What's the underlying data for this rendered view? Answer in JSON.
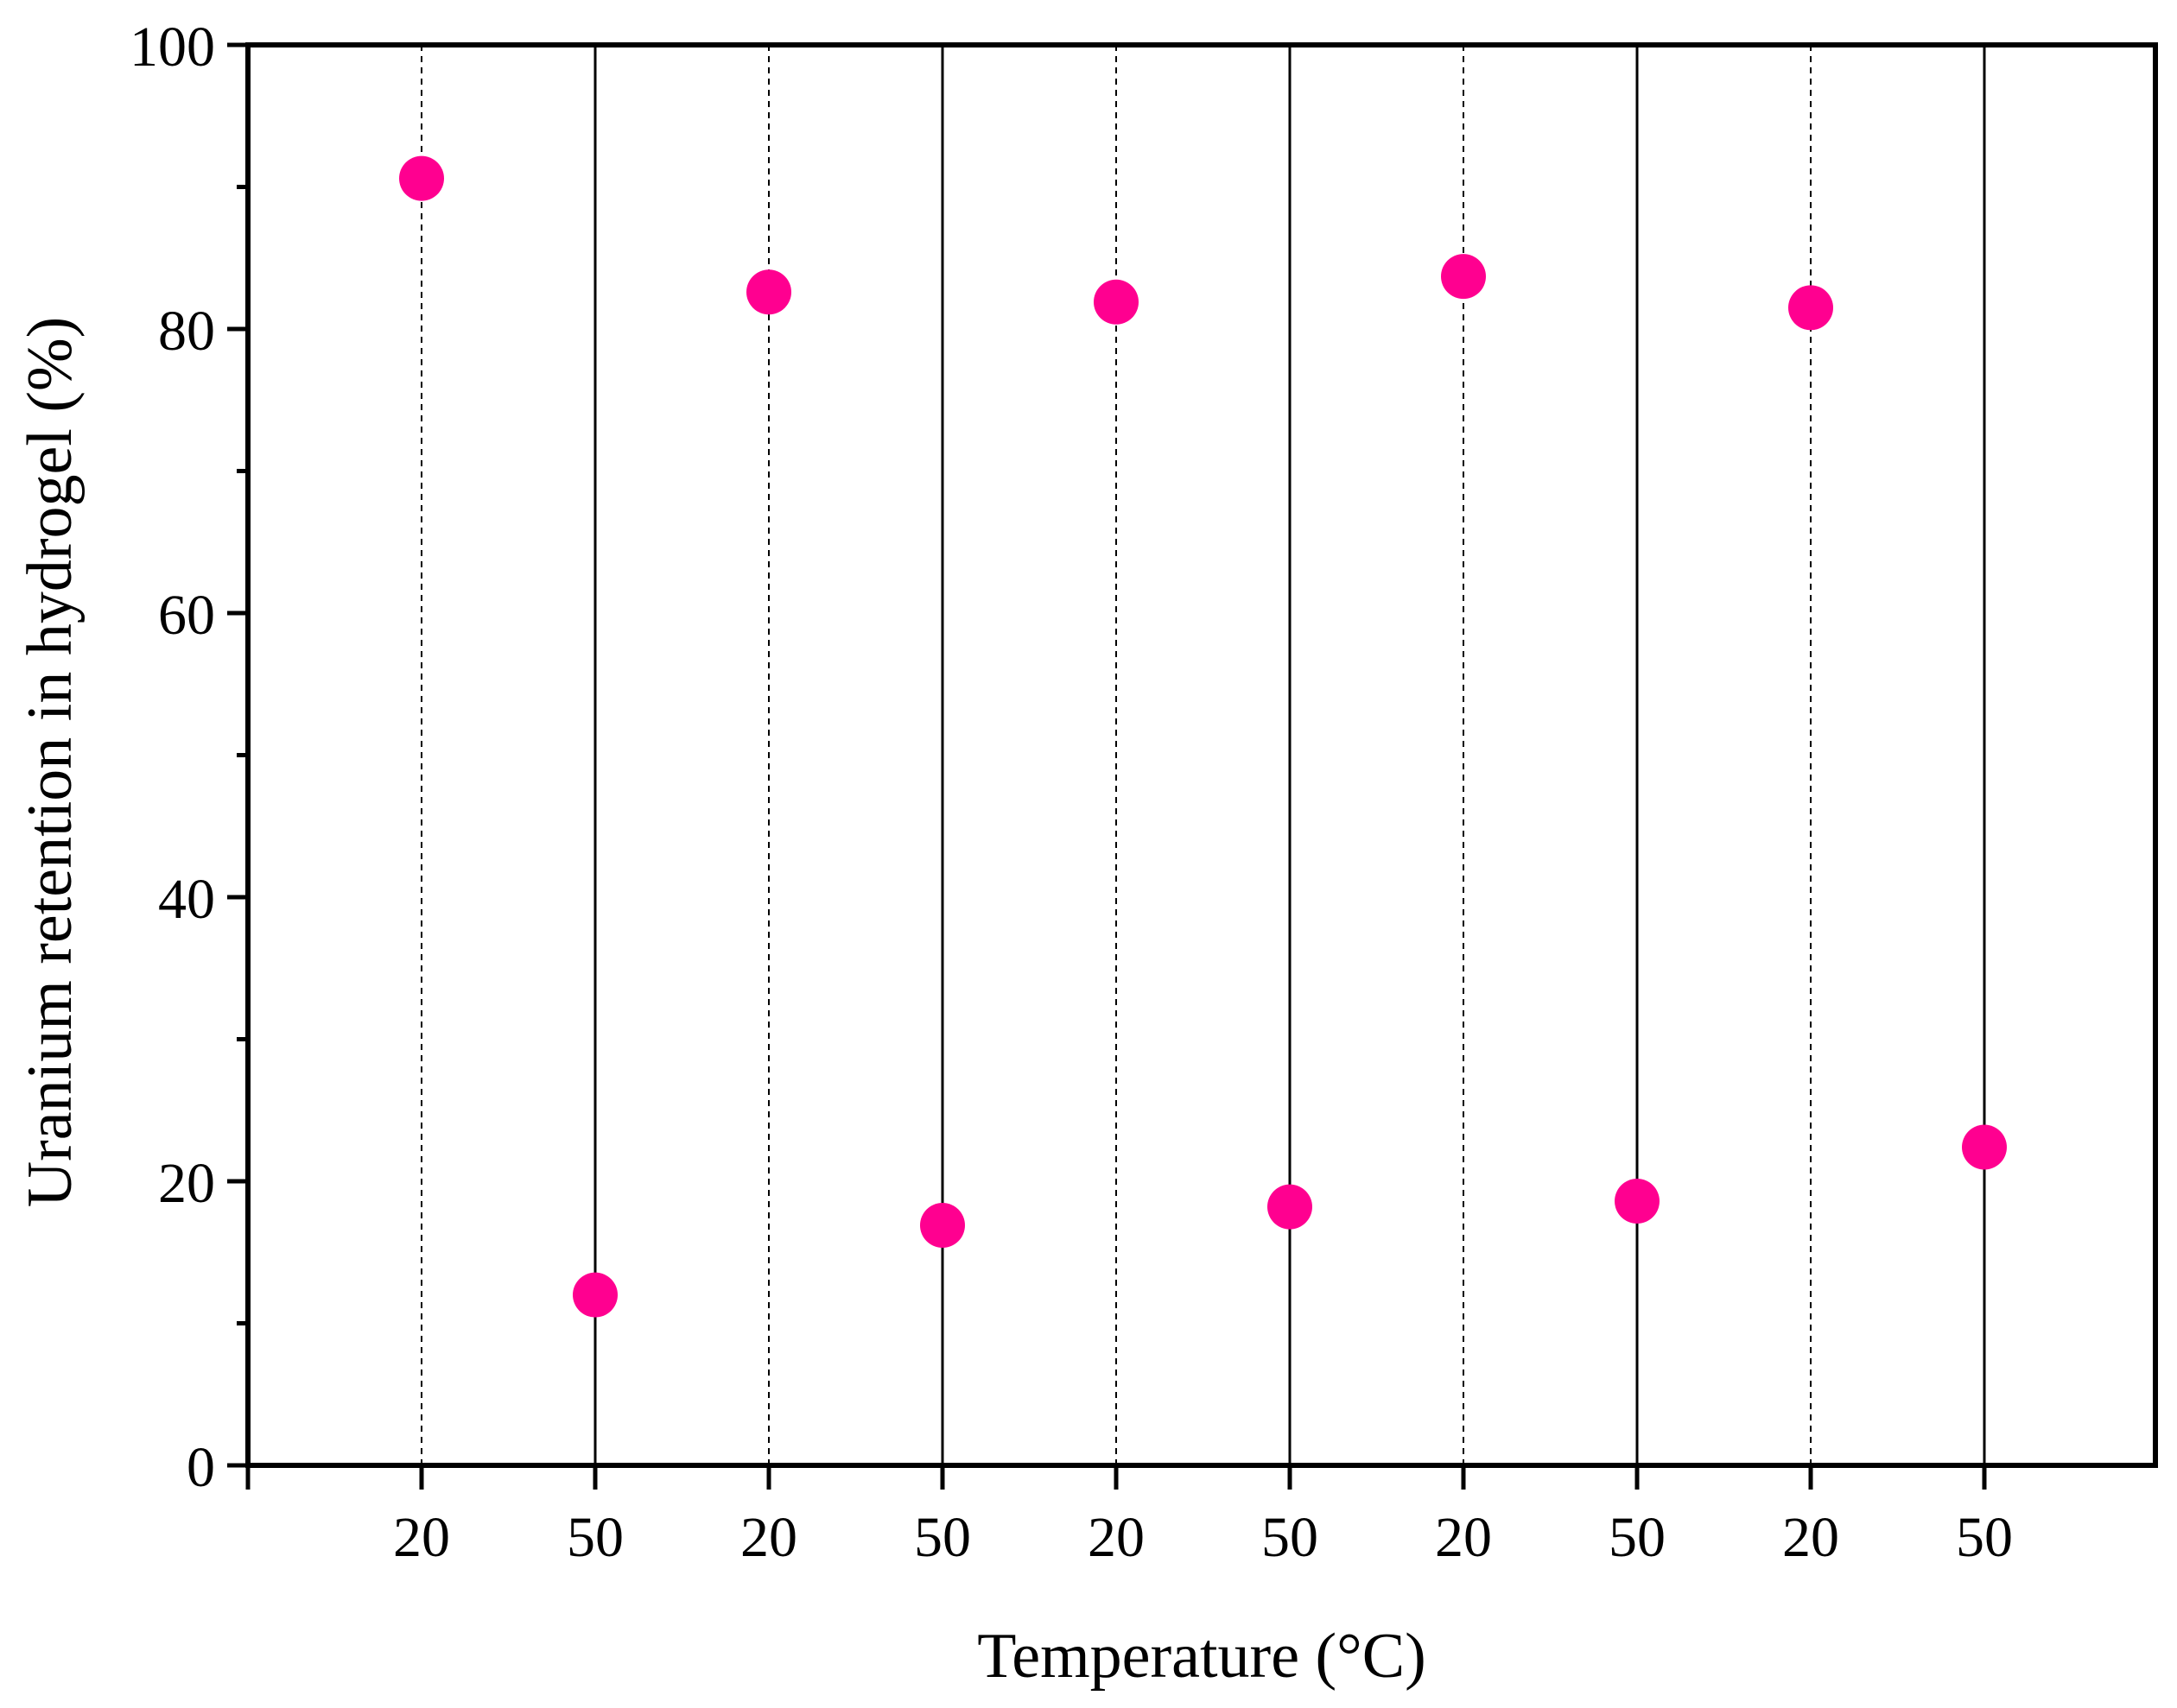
{
  "chart_data": {
    "type": "scatter",
    "title": "",
    "xlabel": "Temperature (°C)",
    "ylabel": "Uranium retention in hydrogel (%)",
    "ylim": [
      0,
      100
    ],
    "yticks_major": [
      0,
      20,
      40,
      60,
      80,
      100
    ],
    "yticks_minor": [
      10,
      30,
      50,
      70,
      90
    ],
    "categories": [
      "20",
      "50",
      "20",
      "50",
      "20",
      "50",
      "20",
      "50",
      "20",
      "50"
    ],
    "values": [
      90.6,
      12.0,
      82.6,
      16.9,
      81.9,
      18.2,
      83.7,
      18.6,
      81.5,
      22.4
    ],
    "marker_color": "#ff0090",
    "grid": "vertical lines at each category: dashed at 20 °C, solid at 50 °C",
    "legend": "none"
  }
}
